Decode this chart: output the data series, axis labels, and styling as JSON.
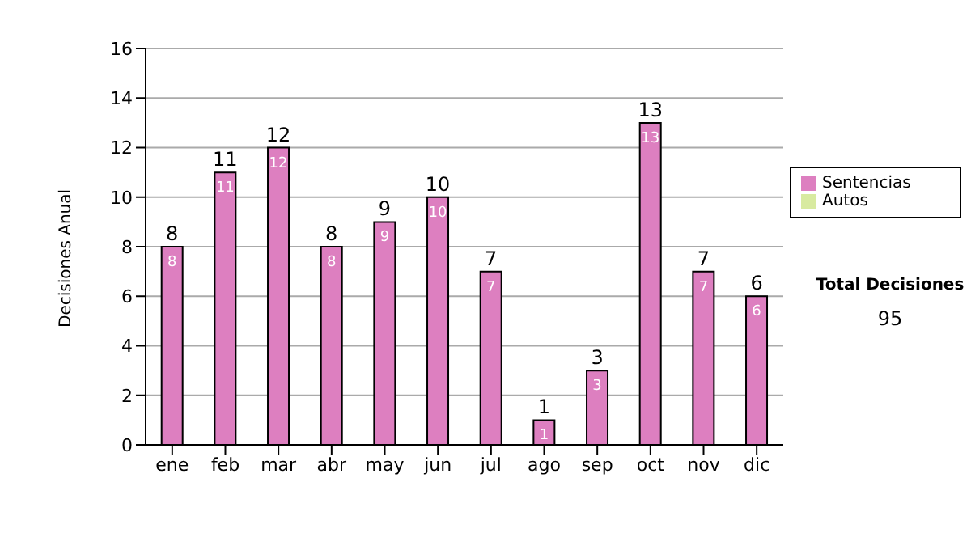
{
  "chart_data": {
    "type": "bar",
    "ylabel": "Decisiones Anual",
    "categories": [
      "ene",
      "feb",
      "mar",
      "abr",
      "may",
      "jun",
      "jul",
      "ago",
      "sep",
      "oct",
      "nov",
      "dic"
    ],
    "series": [
      {
        "name": "Sentencias",
        "color": "#dd7fc0",
        "values": [
          8,
          11,
          12,
          8,
          9,
          10,
          7,
          1,
          3,
          13,
          7,
          6
        ]
      },
      {
        "name": "Autos",
        "color": "#d8eaa0",
        "values": [
          null,
          null,
          null,
          null,
          null,
          null,
          null,
          null,
          null,
          null,
          null,
          null
        ]
      }
    ],
    "stacked": true,
    "data_labels": true,
    "totals": [
      "8",
      "11",
      "12",
      "8",
      "9",
      "10",
      "7",
      "1",
      "3",
      "13",
      "7",
      "6"
    ],
    "ylim": [
      0,
      16
    ],
    "yticks": [
      0,
      2,
      4,
      6,
      8,
      10,
      12,
      14,
      16
    ],
    "grid": "y",
    "legend": "right",
    "annotations": [
      "Total Decisiones",
      "95"
    ]
  }
}
